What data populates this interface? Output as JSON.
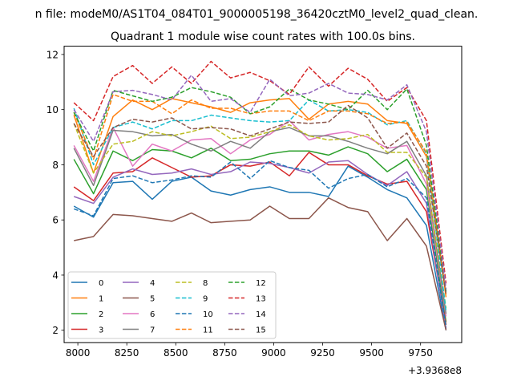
{
  "chart_data": {
    "type": "line",
    "suptitle": "n file: modeM0/AS1T04_084T01_9000005198_36420cztM0_level2_quad_clean.",
    "title": "Quadrant 1 module wise count rates with 100.0s bins.",
    "xlabel": "",
    "ylabel": "",
    "offset_label": "+3.9368e8",
    "xlim": [
      7930,
      9960
    ],
    "ylim": [
      1.55,
      12.3
    ],
    "x_ticks": [
      8000,
      8250,
      8500,
      8750,
      9000,
      9250,
      9500,
      9750
    ],
    "y_ticks": [
      2,
      4,
      6,
      8,
      10,
      12
    ],
    "x": [
      7980,
      8080,
      8180,
      8280,
      8380,
      8480,
      8580,
      8680,
      8780,
      8880,
      8980,
      9080,
      9180,
      9280,
      9380,
      9480,
      9580,
      9680,
      9780,
      9880
    ],
    "legend_position": "lower-left",
    "series": [
      {
        "name": "0",
        "color": "#1f77b4",
        "dash": "solid",
        "values": [
          6.5,
          6.1,
          7.35,
          7.4,
          6.75,
          7.4,
          7.55,
          7.05,
          6.9,
          7.1,
          7.2,
          7.0,
          7.0,
          6.85,
          7.95,
          7.55,
          7.1,
          6.8,
          5.8,
          2.0
        ]
      },
      {
        "name": "1",
        "color": "#ff7f0e",
        "dash": "solid",
        "values": [
          9.8,
          7.7,
          9.75,
          10.35,
          10.0,
          10.4,
          10.25,
          10.1,
          9.9,
          10.25,
          10.35,
          10.4,
          9.65,
          10.2,
          10.3,
          10.2,
          9.6,
          9.5,
          8.3,
          3.2
        ]
      },
      {
        "name": "2",
        "color": "#2ca02c",
        "dash": "solid",
        "values": [
          8.2,
          6.95,
          8.5,
          8.15,
          8.55,
          8.5,
          8.25,
          8.6,
          8.15,
          8.2,
          8.4,
          8.5,
          8.5,
          8.35,
          8.65,
          8.4,
          7.75,
          8.2,
          7.1,
          2.3
        ]
      },
      {
        "name": "3",
        "color": "#d62728",
        "dash": "solid",
        "values": [
          7.2,
          6.7,
          7.7,
          7.75,
          8.25,
          7.9,
          7.55,
          7.6,
          8.0,
          7.95,
          8.1,
          7.6,
          8.45,
          8.0,
          8.0,
          7.6,
          7.3,
          7.4,
          6.3,
          2.2
        ]
      },
      {
        "name": "4",
        "color": "#9467bd",
        "dash": "solid",
        "values": [
          6.85,
          6.6,
          7.55,
          7.85,
          7.65,
          7.7,
          7.85,
          7.65,
          7.75,
          8.1,
          8.05,
          7.9,
          7.7,
          8.1,
          8.15,
          7.65,
          7.25,
          7.75,
          6.6,
          2.05
        ]
      },
      {
        "name": "5",
        "color": "#8c564b",
        "dash": "solid",
        "values": [
          5.25,
          5.4,
          6.2,
          6.15,
          6.05,
          5.95,
          6.25,
          5.9,
          5.95,
          6.0,
          6.5,
          6.05,
          6.05,
          6.8,
          6.45,
          6.3,
          5.25,
          6.05,
          5.05,
          2.0
        ]
      },
      {
        "name": "6",
        "color": "#e377c2",
        "dash": "solid",
        "values": [
          8.7,
          7.4,
          9.35,
          7.95,
          8.75,
          8.5,
          8.9,
          8.95,
          8.4,
          8.9,
          9.1,
          9.6,
          8.9,
          9.1,
          9.2,
          9.0,
          8.6,
          8.7,
          7.3,
          2.5
        ]
      },
      {
        "name": "7",
        "color": "#7f7f7f",
        "dash": "solid",
        "values": [
          8.6,
          7.25,
          9.25,
          9.2,
          9.05,
          9.1,
          8.75,
          8.5,
          8.85,
          8.6,
          9.2,
          9.35,
          9.05,
          9.05,
          8.85,
          8.6,
          8.4,
          8.85,
          7.6,
          2.6
        ]
      },
      {
        "name": "8",
        "color": "#bcbd22",
        "dash": "dashed",
        "values": [
          9.5,
          7.7,
          8.75,
          8.85,
          9.2,
          9.05,
          9.2,
          9.4,
          8.95,
          9.0,
          9.2,
          9.45,
          9.05,
          8.9,
          8.95,
          9.1,
          8.45,
          8.45,
          7.55,
          2.8
        ]
      },
      {
        "name": "9",
        "color": "#17becf",
        "dash": "dashed",
        "values": [
          10.05,
          8.0,
          9.35,
          9.55,
          9.3,
          9.6,
          9.6,
          9.8,
          9.7,
          9.6,
          9.55,
          9.6,
          10.35,
          9.95,
          10.0,
          9.9,
          9.45,
          9.6,
          8.4,
          2.7
        ]
      },
      {
        "name": "10",
        "color": "#1f77b4",
        "dash": "dashed",
        "values": [
          6.4,
          6.15,
          7.5,
          7.6,
          7.35,
          7.45,
          7.6,
          7.55,
          8.1,
          7.5,
          8.15,
          7.9,
          7.8,
          7.15,
          7.5,
          7.65,
          7.2,
          7.5,
          6.8,
          2.1
        ]
      },
      {
        "name": "11",
        "color": "#ff7f0e",
        "dash": "dashed",
        "values": [
          9.9,
          8.2,
          10.55,
          10.3,
          10.3,
          9.85,
          10.35,
          10.05,
          10.05,
          9.85,
          9.95,
          9.95,
          9.6,
          9.95,
          9.95,
          9.85,
          9.5,
          9.55,
          8.45,
          3.3
        ]
      },
      {
        "name": "12",
        "color": "#2ca02c",
        "dash": "dashed",
        "values": [
          9.9,
          8.5,
          10.7,
          10.5,
          10.3,
          10.45,
          10.8,
          10.65,
          10.45,
          9.85,
          10.1,
          10.75,
          10.35,
          10.2,
          10.0,
          10.7,
          10.0,
          10.75,
          8.7,
          3.4
        ]
      },
      {
        "name": "13",
        "color": "#d62728",
        "dash": "dashed",
        "values": [
          10.25,
          9.6,
          11.2,
          11.6,
          10.95,
          11.55,
          10.95,
          11.75,
          11.15,
          11.35,
          11.05,
          10.55,
          11.55,
          10.85,
          11.5,
          11.1,
          10.3,
          10.8,
          9.6,
          3.7
        ]
      },
      {
        "name": "14",
        "color": "#9467bd",
        "dash": "dashed",
        "values": [
          10.0,
          8.85,
          10.65,
          10.7,
          10.55,
          10.35,
          11.25,
          10.3,
          10.4,
          9.9,
          11.1,
          10.5,
          10.6,
          10.95,
          10.6,
          10.55,
          10.35,
          10.9,
          9.2,
          3.5
        ]
      },
      {
        "name": "15",
        "color": "#8c564b",
        "dash": "dashed",
        "values": [
          9.5,
          8.3,
          9.35,
          9.65,
          9.55,
          9.7,
          9.3,
          9.35,
          9.3,
          9.05,
          9.3,
          9.55,
          9.5,
          9.55,
          10.15,
          9.7,
          8.6,
          9.15,
          7.95,
          3.3
        ]
      }
    ]
  }
}
